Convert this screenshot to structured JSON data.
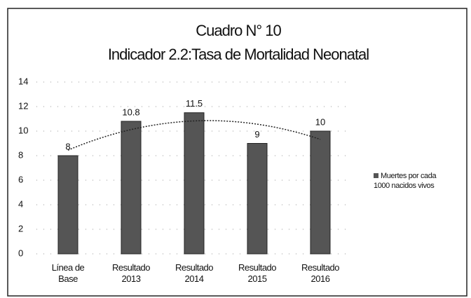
{
  "chart_data": {
    "type": "bar",
    "title": "Cuadro N° 10",
    "subtitle": "Indicador 2.2:Tasa de Mortalidad Neonatal",
    "categories": [
      "Línea de Base",
      "Resultado 2013",
      "Resultado 2014",
      "Resultado 2015",
      "Resultado 2016"
    ],
    "series": [
      {
        "name": "Muertes por cada 1000 nacidos vivos",
        "color": "#555555",
        "values": [
          8,
          10.8,
          11.5,
          9,
          10
        ]
      }
    ],
    "ylim": [
      0,
      14
    ],
    "yticks": [
      0,
      2,
      4,
      6,
      8,
      10,
      12,
      14
    ],
    "grid": true,
    "legend": "right"
  }
}
